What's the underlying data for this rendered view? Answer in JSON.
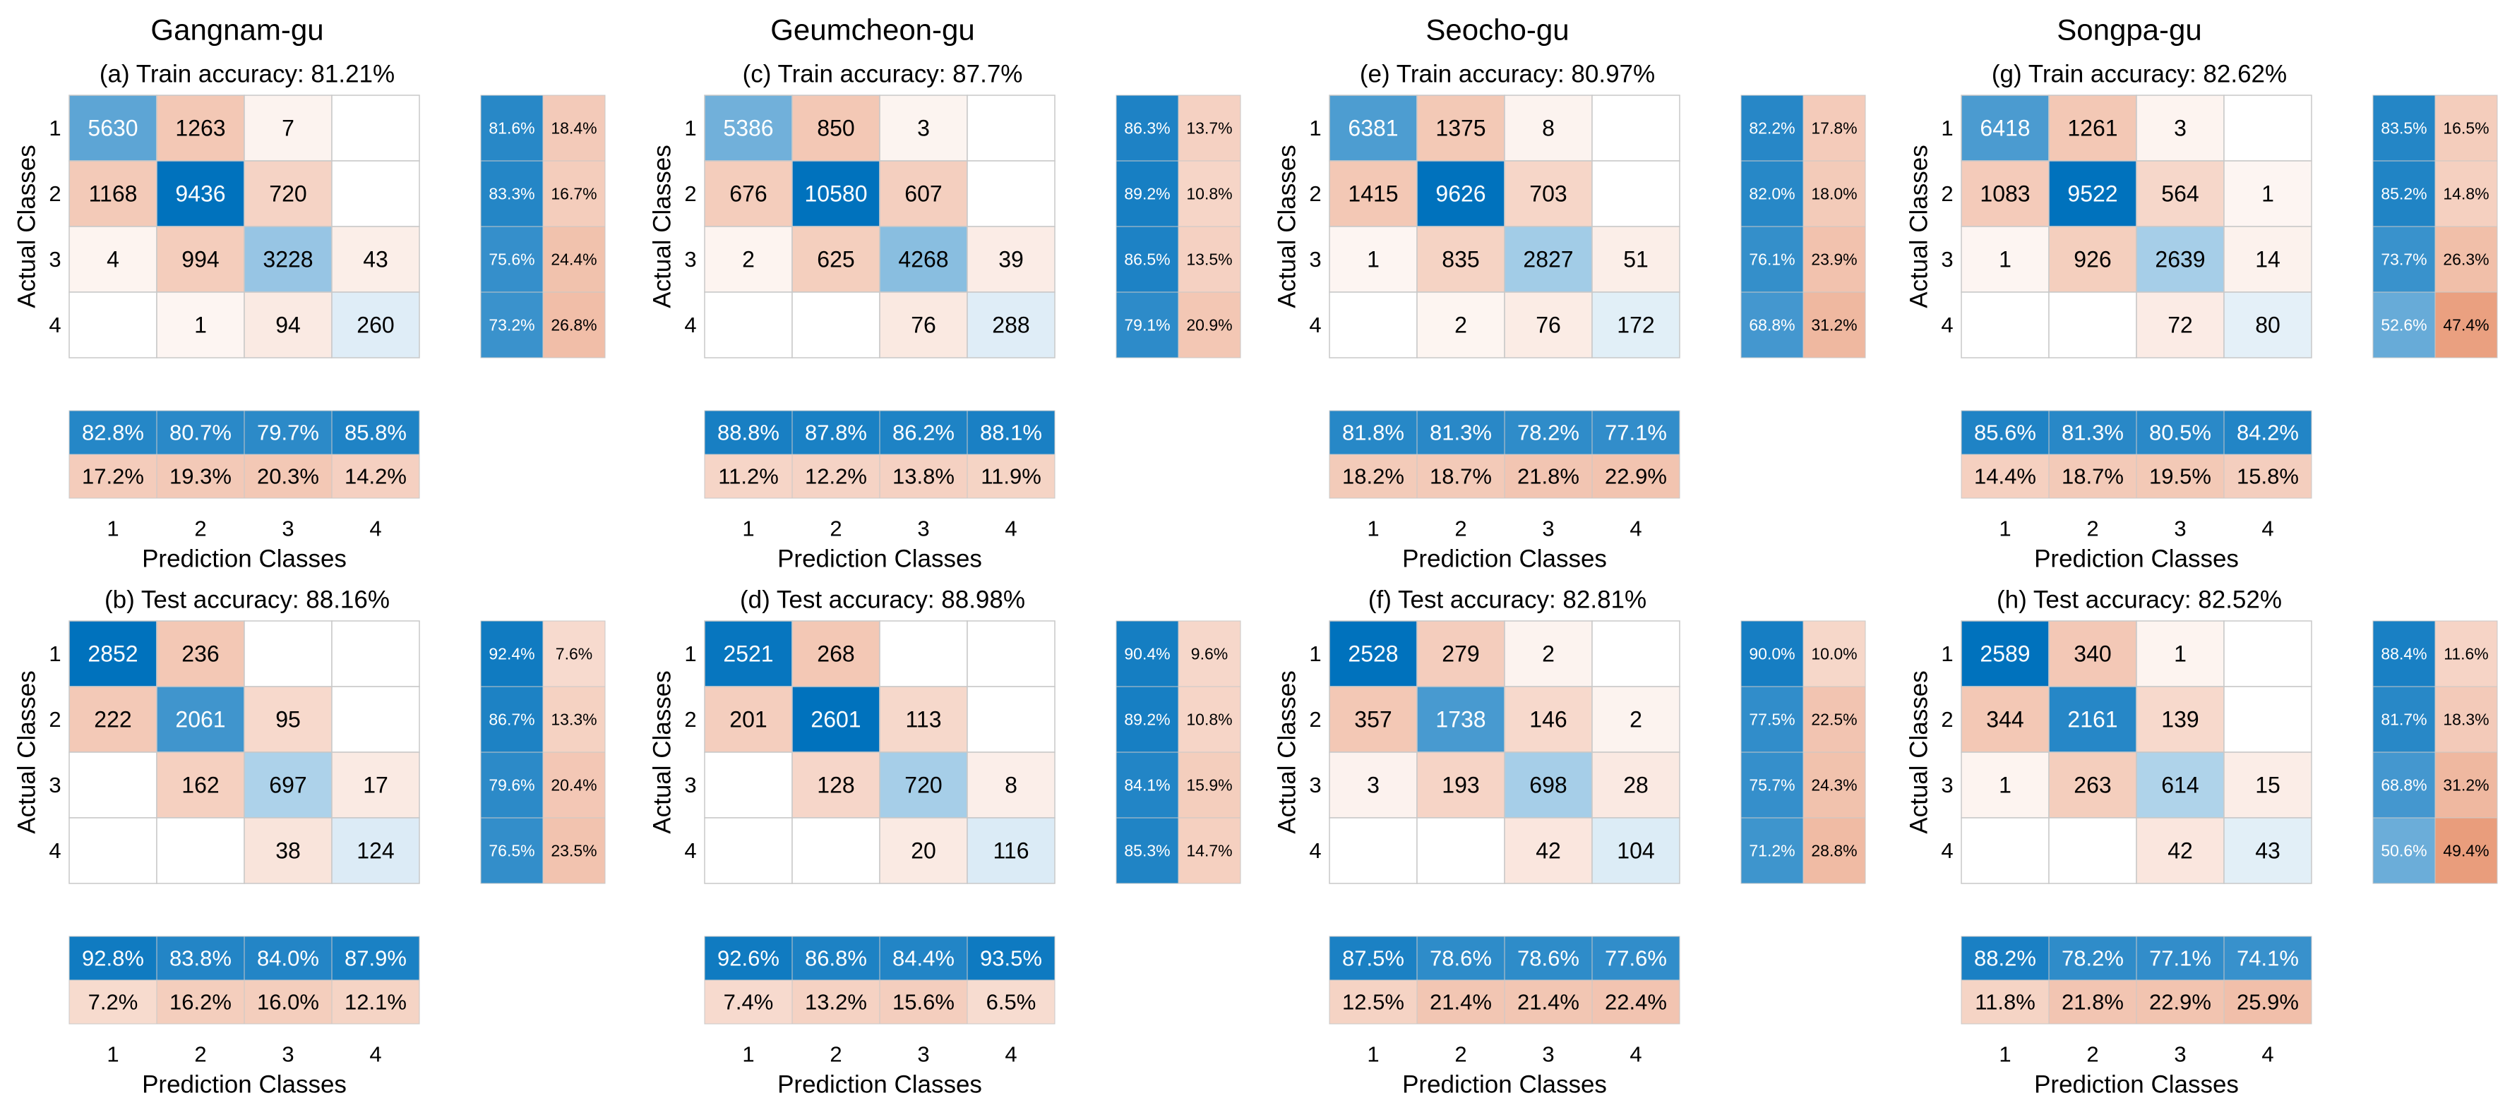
{
  "figure": {
    "axis_label_x": "Prediction Classes",
    "axis_label_y": "Actual Classes",
    "class_labels": [
      "1",
      "2",
      "3",
      "4"
    ],
    "colors": {
      "blue": "#0072BD",
      "orange": "#D95319",
      "grid": "#C8C8C8"
    }
  },
  "chart_data": [
    {
      "type": "heatmap",
      "district": "Gangnam-gu",
      "title": "(a) Train accuracy: 81.21%",
      "matrix": [
        [
          5630,
          1263,
          7,
          0
        ],
        [
          1168,
          9436,
          720,
          0
        ],
        [
          4,
          994,
          3228,
          43
        ],
        [
          0,
          1,
          94,
          260
        ]
      ],
      "row_summary": [
        [
          "81.6%",
          "18.4%"
        ],
        [
          "83.3%",
          "16.7%"
        ],
        [
          "75.6%",
          "24.4%"
        ],
        [
          "73.2%",
          "26.8%"
        ]
      ],
      "col_summary": [
        [
          "82.8%",
          "80.7%",
          "79.7%",
          "85.8%"
        ],
        [
          "17.2%",
          "19.3%",
          "20.3%",
          "14.2%"
        ]
      ]
    },
    {
      "type": "heatmap",
      "district": "Gangnam-gu",
      "title": "(b) Test accuracy: 88.16%",
      "matrix": [
        [
          2852,
          236,
          0,
          0
        ],
        [
          222,
          2061,
          95,
          0
        ],
        [
          0,
          162,
          697,
          17
        ],
        [
          0,
          0,
          38,
          124
        ]
      ],
      "row_summary": [
        [
          "92.4%",
          "7.6%"
        ],
        [
          "86.7%",
          "13.3%"
        ],
        [
          "79.6%",
          "20.4%"
        ],
        [
          "76.5%",
          "23.5%"
        ]
      ],
      "col_summary": [
        [
          "92.8%",
          "83.8%",
          "84.0%",
          "87.9%"
        ],
        [
          "7.2%",
          "16.2%",
          "16.0%",
          "12.1%"
        ]
      ]
    },
    {
      "type": "heatmap",
      "district": "Geumcheon-gu",
      "title": "(c) Train accuracy: 87.7%",
      "matrix": [
        [
          5386,
          850,
          3,
          0
        ],
        [
          676,
          10580,
          607,
          0
        ],
        [
          2,
          625,
          4268,
          39
        ],
        [
          0,
          0,
          76,
          288
        ]
      ],
      "row_summary": [
        [
          "86.3%",
          "13.7%"
        ],
        [
          "89.2%",
          "10.8%"
        ],
        [
          "86.5%",
          "13.5%"
        ],
        [
          "79.1%",
          "20.9%"
        ]
      ],
      "col_summary": [
        [
          "88.8%",
          "87.8%",
          "86.2%",
          "88.1%"
        ],
        [
          "11.2%",
          "12.2%",
          "13.8%",
          "11.9%"
        ]
      ]
    },
    {
      "type": "heatmap",
      "district": "Geumcheon-gu",
      "title": "(d) Test accuracy: 88.98%",
      "matrix": [
        [
          2521,
          268,
          0,
          0
        ],
        [
          201,
          2601,
          113,
          0
        ],
        [
          0,
          128,
          720,
          8
        ],
        [
          0,
          0,
          20,
          116
        ]
      ],
      "row_summary": [
        [
          "90.4%",
          "9.6%"
        ],
        [
          "89.2%",
          "10.8%"
        ],
        [
          "84.1%",
          "15.9%"
        ],
        [
          "85.3%",
          "14.7%"
        ]
      ],
      "col_summary": [
        [
          "92.6%",
          "86.8%",
          "84.4%",
          "93.5%"
        ],
        [
          "7.4%",
          "13.2%",
          "15.6%",
          "6.5%"
        ]
      ]
    },
    {
      "type": "heatmap",
      "district": "Seocho-gu",
      "title": "(e) Train accuracy: 80.97%",
      "matrix": [
        [
          6381,
          1375,
          8,
          0
        ],
        [
          1415,
          9626,
          703,
          0
        ],
        [
          1,
          835,
          2827,
          51
        ],
        [
          0,
          2,
          76,
          172
        ]
      ],
      "row_summary": [
        [
          "82.2%",
          "17.8%"
        ],
        [
          "82.0%",
          "18.0%"
        ],
        [
          "76.1%",
          "23.9%"
        ],
        [
          "68.8%",
          "31.2%"
        ]
      ],
      "col_summary": [
        [
          "81.8%",
          "81.3%",
          "78.2%",
          "77.1%"
        ],
        [
          "18.2%",
          "18.7%",
          "21.8%",
          "22.9%"
        ]
      ]
    },
    {
      "type": "heatmap",
      "district": "Seocho-gu",
      "title": "(f) Test accuracy: 82.81%",
      "matrix": [
        [
          2528,
          279,
          2,
          0
        ],
        [
          357,
          1738,
          146,
          2
        ],
        [
          3,
          193,
          698,
          28
        ],
        [
          0,
          0,
          42,
          104
        ]
      ],
      "row_summary": [
        [
          "90.0%",
          "10.0%"
        ],
        [
          "77.5%",
          "22.5%"
        ],
        [
          "75.7%",
          "24.3%"
        ],
        [
          "71.2%",
          "28.8%"
        ]
      ],
      "col_summary": [
        [
          "87.5%",
          "78.6%",
          "78.6%",
          "77.6%"
        ],
        [
          "12.5%",
          "21.4%",
          "21.4%",
          "22.4%"
        ]
      ]
    },
    {
      "type": "heatmap",
      "district": "Songpa-gu",
      "title": "(g) Train accuracy: 82.62%",
      "matrix": [
        [
          6418,
          1261,
          3,
          0
        ],
        [
          1083,
          9522,
          564,
          1
        ],
        [
          1,
          926,
          2639,
          14
        ],
        [
          0,
          0,
          72,
          80
        ]
      ],
      "row_summary": [
        [
          "83.5%",
          "16.5%"
        ],
        [
          "85.2%",
          "14.8%"
        ],
        [
          "73.7%",
          "26.3%"
        ],
        [
          "52.6%",
          "47.4%"
        ]
      ],
      "col_summary": [
        [
          "85.6%",
          "81.3%",
          "80.5%",
          "84.2%"
        ],
        [
          "14.4%",
          "18.7%",
          "19.5%",
          "15.8%"
        ]
      ]
    },
    {
      "type": "heatmap",
      "district": "Songpa-gu",
      "title": "(h) Test accuracy: 82.52%",
      "matrix": [
        [
          2589,
          340,
          1,
          0
        ],
        [
          344,
          2161,
          139,
          0
        ],
        [
          1,
          263,
          614,
          15
        ],
        [
          0,
          0,
          42,
          43
        ]
      ],
      "row_summary": [
        [
          "88.4%",
          "11.6%"
        ],
        [
          "81.7%",
          "18.3%"
        ],
        [
          "68.8%",
          "31.2%"
        ],
        [
          "50.6%",
          "49.4%"
        ]
      ],
      "col_summary": [
        [
          "88.2%",
          "78.2%",
          "77.1%",
          "74.1%"
        ],
        [
          "11.8%",
          "21.8%",
          "22.9%",
          "25.9%"
        ]
      ]
    }
  ]
}
